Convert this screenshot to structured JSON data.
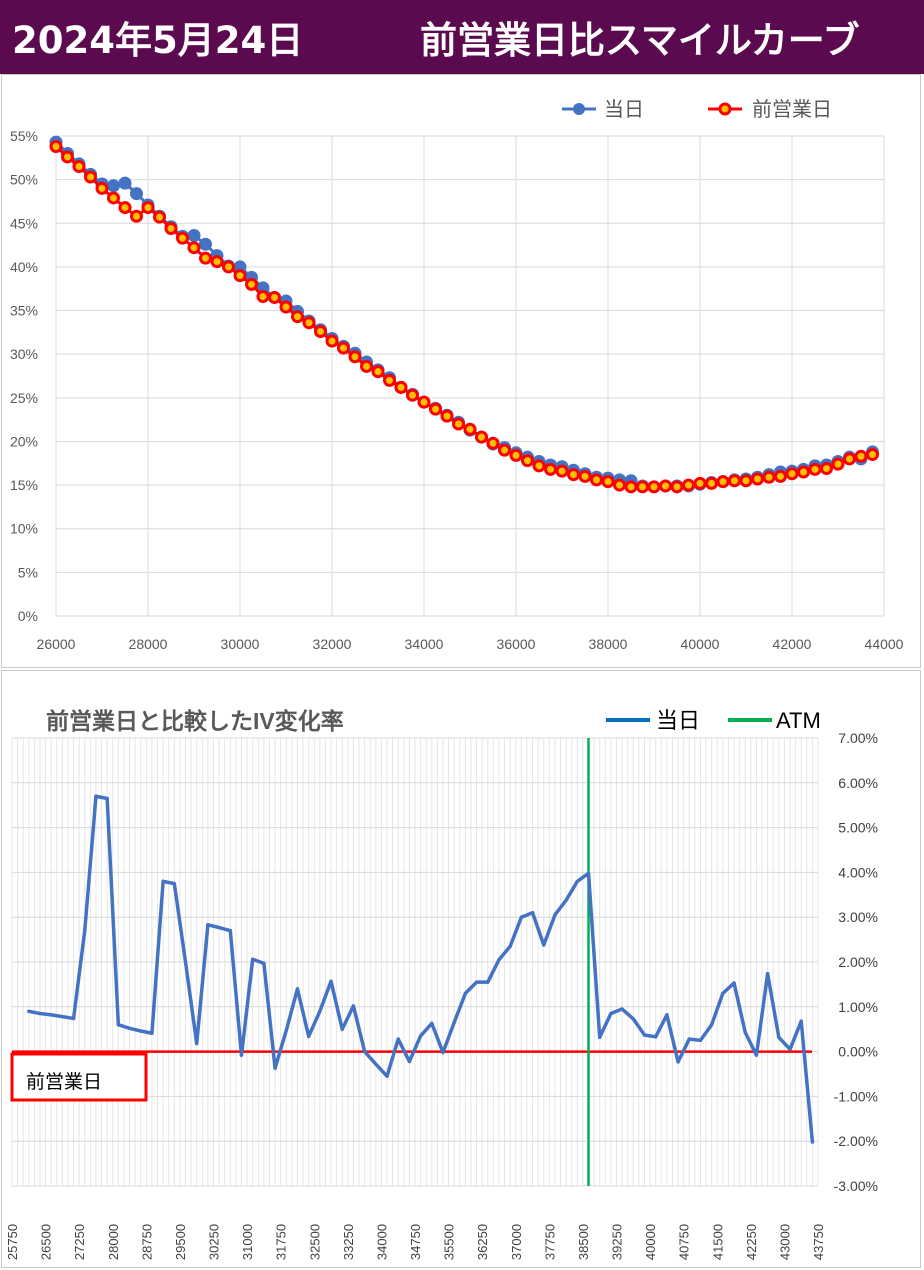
{
  "header": {
    "date": "2024年5月24日",
    "title": "前営業日比スマイルカーブ"
  },
  "colors": {
    "header_bg": "#5b0a4f",
    "today": "#4472c4",
    "prev": "#ff0000",
    "prev_inner": "#ffc000",
    "iv_line": "#4472c4",
    "zero_line": "#ff0000",
    "atm_line": "#00b050",
    "grid": "#d9d9d9"
  },
  "chart_data": [
    {
      "type": "line",
      "title": "",
      "legend": {
        "position": "top-right",
        "entries": [
          "当日",
          "前営業日"
        ]
      },
      "xlim": [
        26000,
        44000
      ],
      "ylim": [
        0,
        55
      ],
      "x_ticks": [
        "26000",
        "28000",
        "30000",
        "32000",
        "34000",
        "36000",
        "38000",
        "40000",
        "42000",
        "44000"
      ],
      "y_ticks": [
        "0%",
        "5%",
        "10%",
        "15%",
        "20%",
        "25%",
        "30%",
        "35%",
        "40%",
        "45%",
        "50%",
        "55%"
      ],
      "grid": true,
      "series": [
        {
          "name": "当日",
          "marker": "circle",
          "x": [
            26000,
            26250,
            26500,
            26750,
            27000,
            27250,
            27500,
            27750,
            28000,
            28250,
            28500,
            28750,
            29000,
            29250,
            29500,
            29750,
            30000,
            30250,
            30500,
            30750,
            31000,
            31250,
            31500,
            31750,
            32000,
            32250,
            32500,
            32750,
            33000,
            33250,
            33500,
            33750,
            34000,
            34250,
            34500,
            34750,
            35000,
            35250,
            35500,
            35750,
            36000,
            36250,
            36500,
            36750,
            37000,
            37250,
            37500,
            37750,
            38000,
            38250,
            38500,
            38750,
            39000,
            39250,
            39500,
            39750,
            40000,
            40250,
            40500,
            40750,
            41000,
            41250,
            41500,
            41750,
            42000,
            42250,
            42500,
            42750,
            43000,
            43250,
            43500,
            43750
          ],
          "y": [
            54.3,
            53.0,
            51.8,
            50.6,
            49.5,
            49.3,
            49.6,
            48.4,
            47.1,
            45.8,
            44.6,
            43.5,
            43.6,
            42.6,
            41.3,
            40.1,
            40.0,
            38.8,
            37.6,
            36.5,
            36.1,
            34.9,
            33.8,
            32.8,
            31.8,
            30.9,
            30.1,
            29.1,
            28.2,
            27.3,
            26.2,
            25.4,
            24.5,
            23.8,
            23.0,
            22.2,
            21.3,
            20.5,
            19.7,
            19.3,
            18.7,
            18.2,
            17.7,
            17.3,
            17.1,
            16.7,
            16.3,
            15.9,
            15.8,
            15.6,
            15.5,
            14.9,
            14.8,
            14.9,
            14.9,
            14.9,
            15.1,
            15.3,
            15.4,
            15.6,
            15.7,
            15.9,
            16.2,
            16.5,
            16.6,
            16.8,
            17.2,
            17.3,
            17.7,
            18.2,
            18.0,
            18.8
          ]
        },
        {
          "name": "前営業日",
          "marker": "circle",
          "x": [
            26000,
            26250,
            26500,
            26750,
            27000,
            27250,
            27500,
            27750,
            28000,
            28250,
            28500,
            28750,
            29000,
            29250,
            29500,
            29750,
            30000,
            30250,
            30500,
            30750,
            31000,
            31250,
            31500,
            31750,
            32000,
            32250,
            32500,
            32750,
            33000,
            33250,
            33500,
            33750,
            34000,
            34250,
            34500,
            34750,
            35000,
            35250,
            35500,
            35750,
            36000,
            36250,
            36500,
            36750,
            37000,
            37250,
            37500,
            37750,
            38000,
            38250,
            38500,
            38750,
            39000,
            39250,
            39500,
            39750,
            40000,
            40250,
            40500,
            40750,
            41000,
            41250,
            41500,
            41750,
            42000,
            42250,
            42500,
            42750,
            43000,
            43250,
            43500,
            43750
          ],
          "y": [
            53.8,
            52.6,
            51.5,
            50.3,
            49.0,
            47.9,
            46.8,
            45.8,
            46.8,
            45.7,
            44.4,
            43.3,
            42.2,
            41.0,
            40.6,
            40.0,
            39.0,
            38.0,
            36.6,
            36.5,
            35.4,
            34.3,
            33.6,
            32.6,
            31.5,
            30.7,
            29.7,
            28.6,
            28.0,
            27.0,
            26.2,
            25.3,
            24.5,
            23.7,
            22.9,
            22.0,
            21.4,
            20.5,
            19.8,
            19.0,
            18.4,
            17.8,
            17.2,
            16.8,
            16.6,
            16.2,
            16.0,
            15.6,
            15.4,
            15.0,
            14.8,
            14.8,
            14.8,
            14.9,
            14.8,
            15.0,
            15.2,
            15.2,
            15.4,
            15.5,
            15.5,
            15.7,
            15.9,
            16.0,
            16.3,
            16.5,
            16.8,
            16.9,
            17.4,
            18.0,
            18.3,
            18.5
          ]
        }
      ]
    },
    {
      "type": "line",
      "title": "前営業日と比較したIV変化率",
      "legend": {
        "position": "top-right",
        "entries": [
          "当日",
          "ATM"
        ]
      },
      "xlim": [
        25750,
        43750
      ],
      "ylim": [
        -3,
        7
      ],
      "y_unit": "%",
      "x_ticks": [
        "25750",
        "26500",
        "27250",
        "28000",
        "28750",
        "29500",
        "30250",
        "31000",
        "31750",
        "32500",
        "33250",
        "34000",
        "34750",
        "35500",
        "36250",
        "37000",
        "37750",
        "38500",
        "39250",
        "40000",
        "40750",
        "41500",
        "42250",
        "43000",
        "43750"
      ],
      "y_ticks": [
        "7.00%",
        "6.00%",
        "5.00%",
        "4.00%",
        "3.00%",
        "2.00%",
        "1.00%",
        "0.00%",
        "-1.00%",
        "-2.00%",
        "-3.00%"
      ],
      "atm": 38625,
      "zero_label": "前営業日",
      "series": [
        {
          "name": "当日",
          "x": [
            26125,
            26375,
            26625,
            26875,
            27125,
            27375,
            27625,
            27875,
            28125,
            28375,
            28625,
            28875,
            29125,
            29375,
            29625,
            29875,
            30125,
            30375,
            30625,
            30875,
            31125,
            31375,
            31625,
            31875,
            32125,
            32375,
            32625,
            32875,
            33125,
            33375,
            33625,
            33875,
            34125,
            34375,
            34625,
            34875,
            35125,
            35375,
            35625,
            35875,
            36125,
            36375,
            36625,
            36875,
            37125,
            37375,
            37625,
            37875,
            38125,
            38375,
            38625,
            38875,
            39125,
            39375,
            39625,
            39875,
            40125,
            40375,
            40625,
            40875,
            41125,
            41375,
            41625,
            41875,
            42125,
            42375,
            42625,
            42875,
            43125,
            43375,
            43625
          ],
          "y": [
            0.9,
            0.85,
            0.82,
            0.78,
            0.74,
            2.7,
            5.7,
            5.65,
            0.6,
            0.52,
            0.46,
            0.41,
            3.8,
            3.75,
            2.0,
            0.18,
            2.83,
            2.77,
            2.7,
            -0.08,
            2.06,
            1.97,
            -0.37,
            0.47,
            1.4,
            0.34,
            0.9,
            1.57,
            0.5,
            1.02,
            0.0,
            -0.28,
            -0.55,
            0.28,
            -0.22,
            0.35,
            0.63,
            -0.02,
            0.65,
            1.3,
            1.55,
            1.55,
            2.05,
            2.35,
            3.0,
            3.1,
            2.38,
            3.05,
            3.38,
            3.8,
            3.98,
            0.32,
            0.85,
            0.95,
            0.73,
            0.37,
            0.33,
            0.82,
            -0.23,
            0.28,
            0.25,
            0.6,
            1.3,
            1.53,
            0.43,
            -0.08,
            1.74,
            0.32,
            0.05,
            0.68,
            -2.02
          ]
        }
      ]
    }
  ]
}
